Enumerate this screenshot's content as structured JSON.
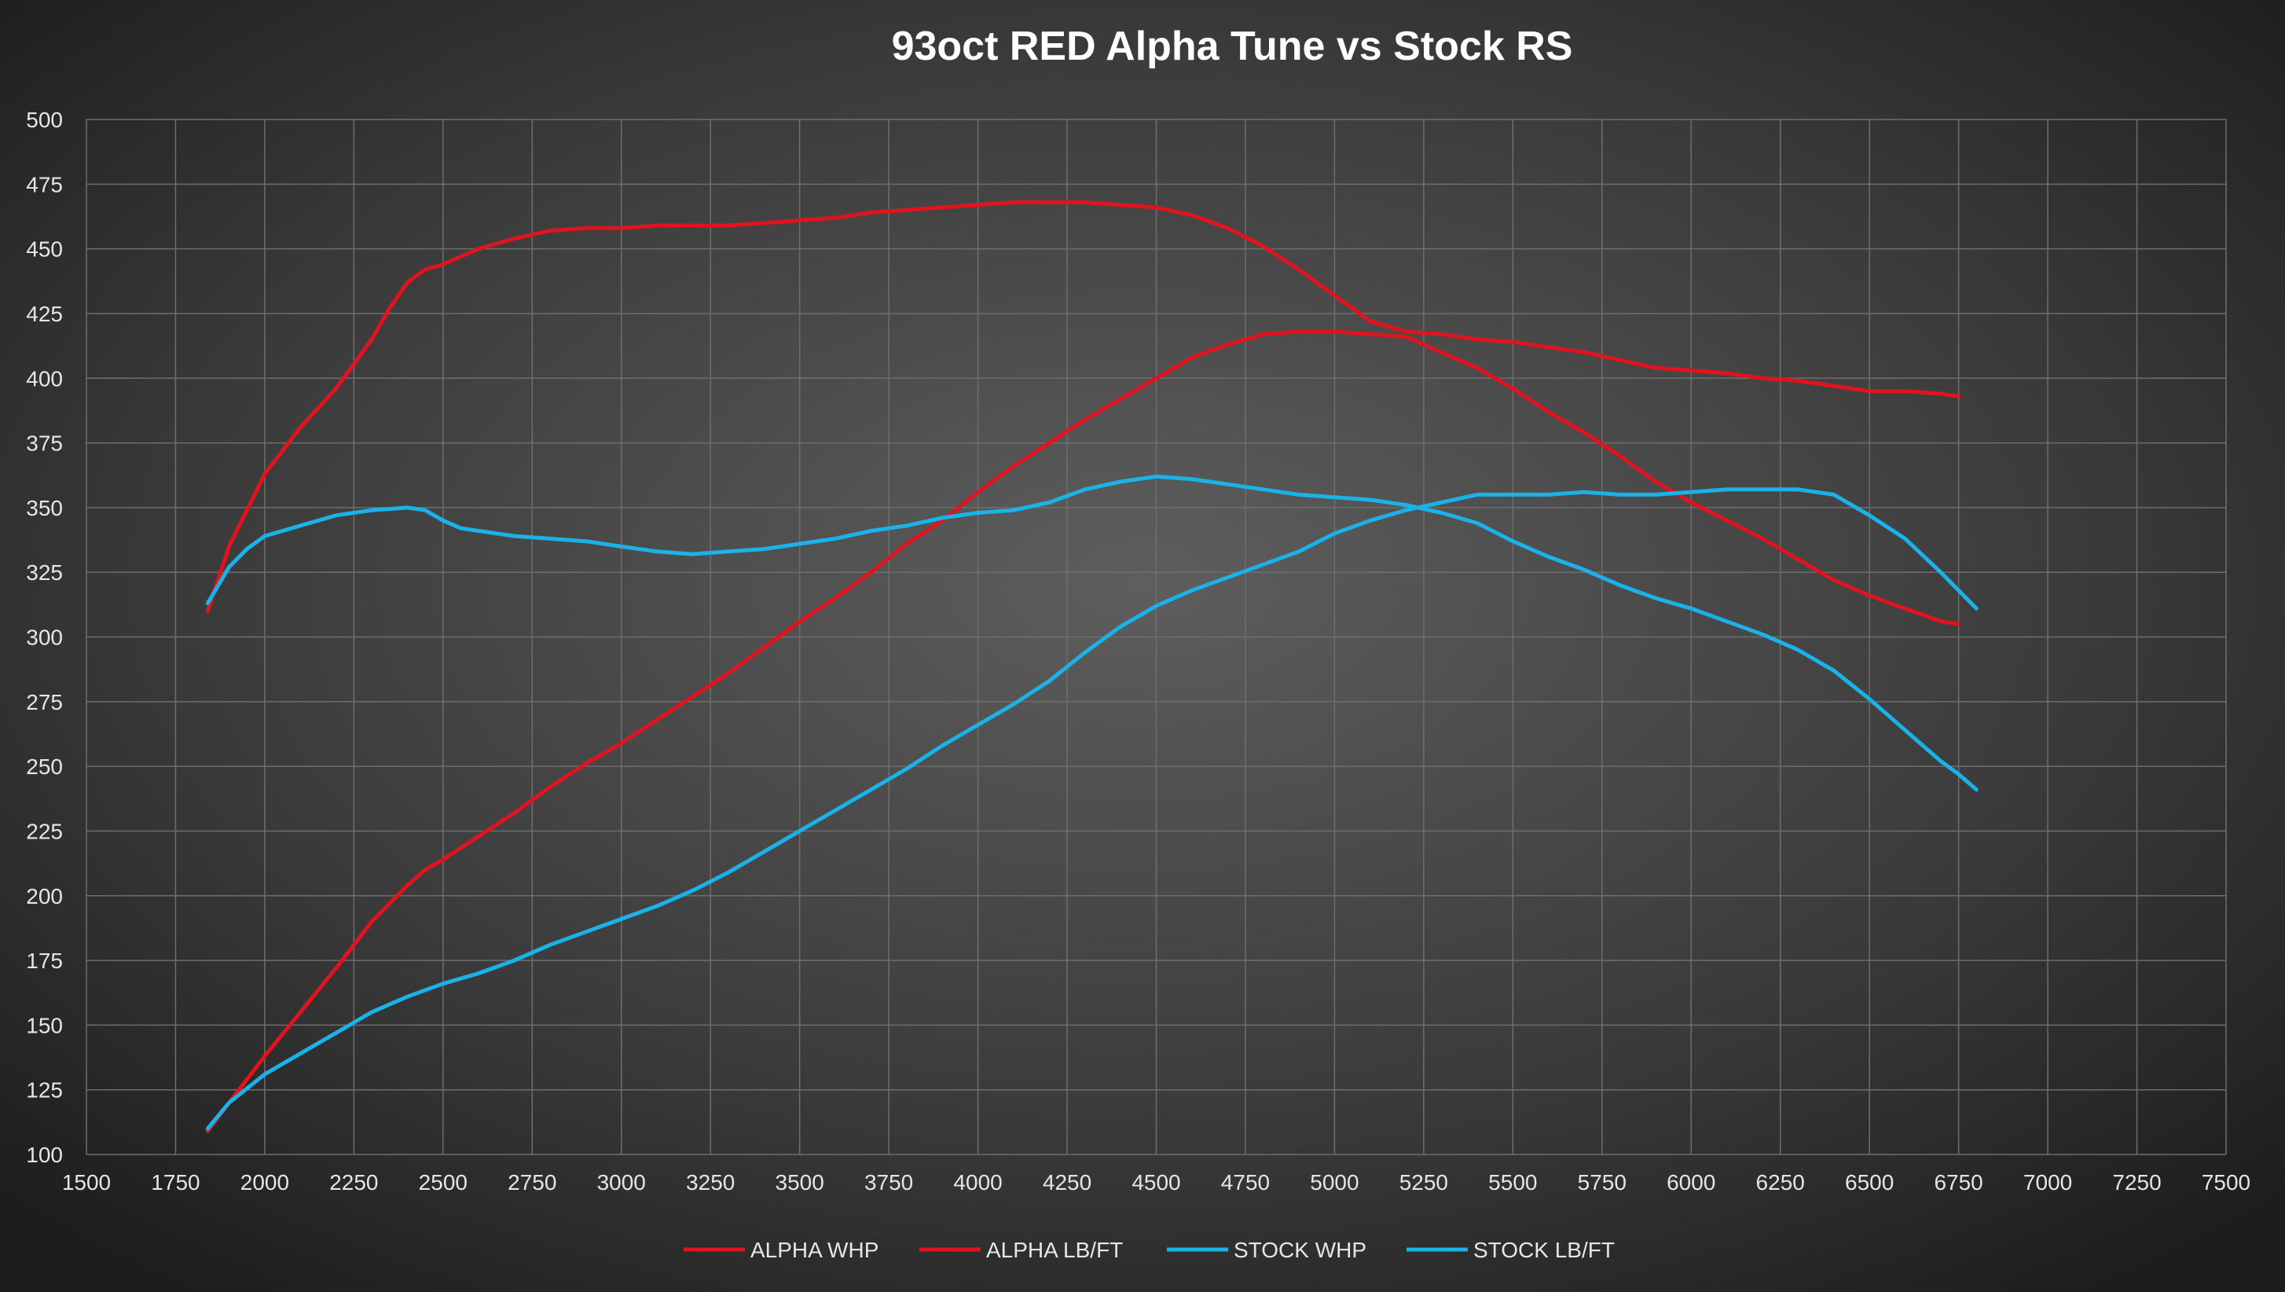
{
  "chart_data": {
    "type": "line",
    "title": "93oct RED Alpha Tune vs Stock RS",
    "xlabel": "",
    "ylabel": "",
    "xlim": [
      1500,
      7500
    ],
    "ylim": [
      100,
      500
    ],
    "x_ticks": [
      1500,
      1750,
      2000,
      2250,
      2500,
      2750,
      3000,
      3250,
      3500,
      3750,
      4000,
      4250,
      4500,
      4750,
      5000,
      5250,
      5500,
      5750,
      6000,
      6250,
      6500,
      6750,
      7000,
      7250,
      7500
    ],
    "y_ticks": [
      100,
      125,
      150,
      175,
      200,
      225,
      250,
      275,
      300,
      325,
      350,
      375,
      400,
      425,
      450,
      475,
      500
    ],
    "grid": true,
    "legend_position": "bottom",
    "series": [
      {
        "name": "ALPHA WHP",
        "color": "#e0141e",
        "x": [
          1840,
          1900,
          2000,
          2100,
          2200,
          2300,
          2400,
          2450,
          2500,
          2600,
          2700,
          2800,
          2900,
          3000,
          3100,
          3200,
          3300,
          3400,
          3500,
          3600,
          3700,
          3800,
          3900,
          4000,
          4100,
          4200,
          4300,
          4400,
          4500,
          4600,
          4700,
          4800,
          4900,
          5000,
          5100,
          5200,
          5300,
          5400,
          5500,
          5600,
          5700,
          5800,
          5900,
          6000,
          6100,
          6200,
          6300,
          6400,
          6500,
          6600,
          6700,
          6750
        ],
        "y": [
          109,
          120,
          138,
          155,
          172,
          190,
          204,
          210,
          214,
          223,
          232,
          242,
          251,
          259,
          268,
          277,
          286,
          296,
          306,
          315,
          325,
          336,
          345,
          356,
          366,
          375,
          384,
          392,
          400,
          408,
          413,
          417,
          418,
          418,
          417,
          416,
          410,
          404,
          396,
          387,
          379,
          370,
          360,
          352,
          345,
          338,
          330,
          322,
          316,
          311,
          306,
          305
        ]
      },
      {
        "name": "ALPHA LB/FT",
        "color": "#e0141e",
        "x": [
          1840,
          1900,
          2000,
          2100,
          2200,
          2300,
          2350,
          2400,
          2450,
          2500,
          2600,
          2700,
          2800,
          2900,
          3000,
          3100,
          3200,
          3300,
          3400,
          3500,
          3600,
          3700,
          3800,
          3900,
          4000,
          4100,
          4200,
          4300,
          4400,
          4500,
          4600,
          4700,
          4800,
          4900,
          5000,
          5100,
          5200,
          5300,
          5400,
          5500,
          5600,
          5700,
          5800,
          5900,
          6000,
          6100,
          6200,
          6300,
          6400,
          6500,
          6600,
          6700,
          6750
        ],
        "y": [
          310,
          335,
          363,
          381,
          396,
          415,
          427,
          437,
          442,
          444,
          450,
          454,
          457,
          458,
          458,
          459,
          459,
          459,
          460,
          461,
          462,
          464,
          465,
          466,
          467,
          468,
          468,
          468,
          467,
          466,
          463,
          458,
          451,
          442,
          432,
          422,
          418,
          417,
          415,
          414,
          412,
          410,
          407,
          404,
          403,
          402,
          400,
          399,
          397,
          395,
          395,
          394,
          393
        ]
      },
      {
        "name": "STOCK WHP",
        "color": "#1ab2e8",
        "x": [
          1840,
          1900,
          2000,
          2100,
          2200,
          2300,
          2400,
          2500,
          2600,
          2700,
          2800,
          2900,
          3000,
          3100,
          3200,
          3300,
          3400,
          3500,
          3600,
          3700,
          3800,
          3900,
          4000,
          4100,
          4200,
          4300,
          4400,
          4500,
          4600,
          4700,
          4800,
          4900,
          5000,
          5100,
          5200,
          5300,
          5400,
          5500,
          5600,
          5700,
          5800,
          5900,
          6000,
          6100,
          6200,
          6300,
          6400,
          6500,
          6600,
          6700,
          6750,
          6800
        ],
        "y": [
          110,
          120,
          131,
          139,
          147,
          155,
          161,
          166,
          170,
          175,
          181,
          186,
          191,
          196,
          202,
          209,
          217,
          225,
          233,
          241,
          249,
          258,
          266,
          274,
          283,
          294,
          304,
          312,
          318,
          323,
          328,
          333,
          340,
          345,
          349,
          352,
          355,
          355,
          355,
          356,
          355,
          355,
          356,
          357,
          357,
          357,
          355,
          347,
          338,
          325,
          318,
          311
        ]
      },
      {
        "name": "STOCK LB/FT",
        "color": "#1ab2e8",
        "x": [
          1840,
          1900,
          1950,
          2000,
          2050,
          2100,
          2200,
          2300,
          2400,
          2450,
          2500,
          2550,
          2600,
          2700,
          2800,
          2900,
          3000,
          3100,
          3200,
          3300,
          3400,
          3500,
          3600,
          3700,
          3800,
          3900,
          4000,
          4100,
          4200,
          4300,
          4400,
          4500,
          4600,
          4700,
          4800,
          4900,
          5000,
          5100,
          5200,
          5300,
          5400,
          5500,
          5600,
          5700,
          5800,
          5900,
          6000,
          6100,
          6200,
          6300,
          6400,
          6500,
          6600,
          6700,
          6750,
          6800
        ],
        "y": [
          313,
          327,
          334,
          339,
          341,
          343,
          347,
          349,
          350,
          349,
          345,
          342,
          341,
          339,
          338,
          337,
          335,
          333,
          332,
          333,
          334,
          336,
          338,
          341,
          343,
          346,
          348,
          349,
          352,
          357,
          360,
          362,
          361,
          359,
          357,
          355,
          354,
          353,
          351,
          348,
          344,
          337,
          331,
          326,
          320,
          315,
          311,
          306,
          301,
          295,
          287,
          276,
          264,
          252,
          247,
          241
        ]
      }
    ]
  }
}
